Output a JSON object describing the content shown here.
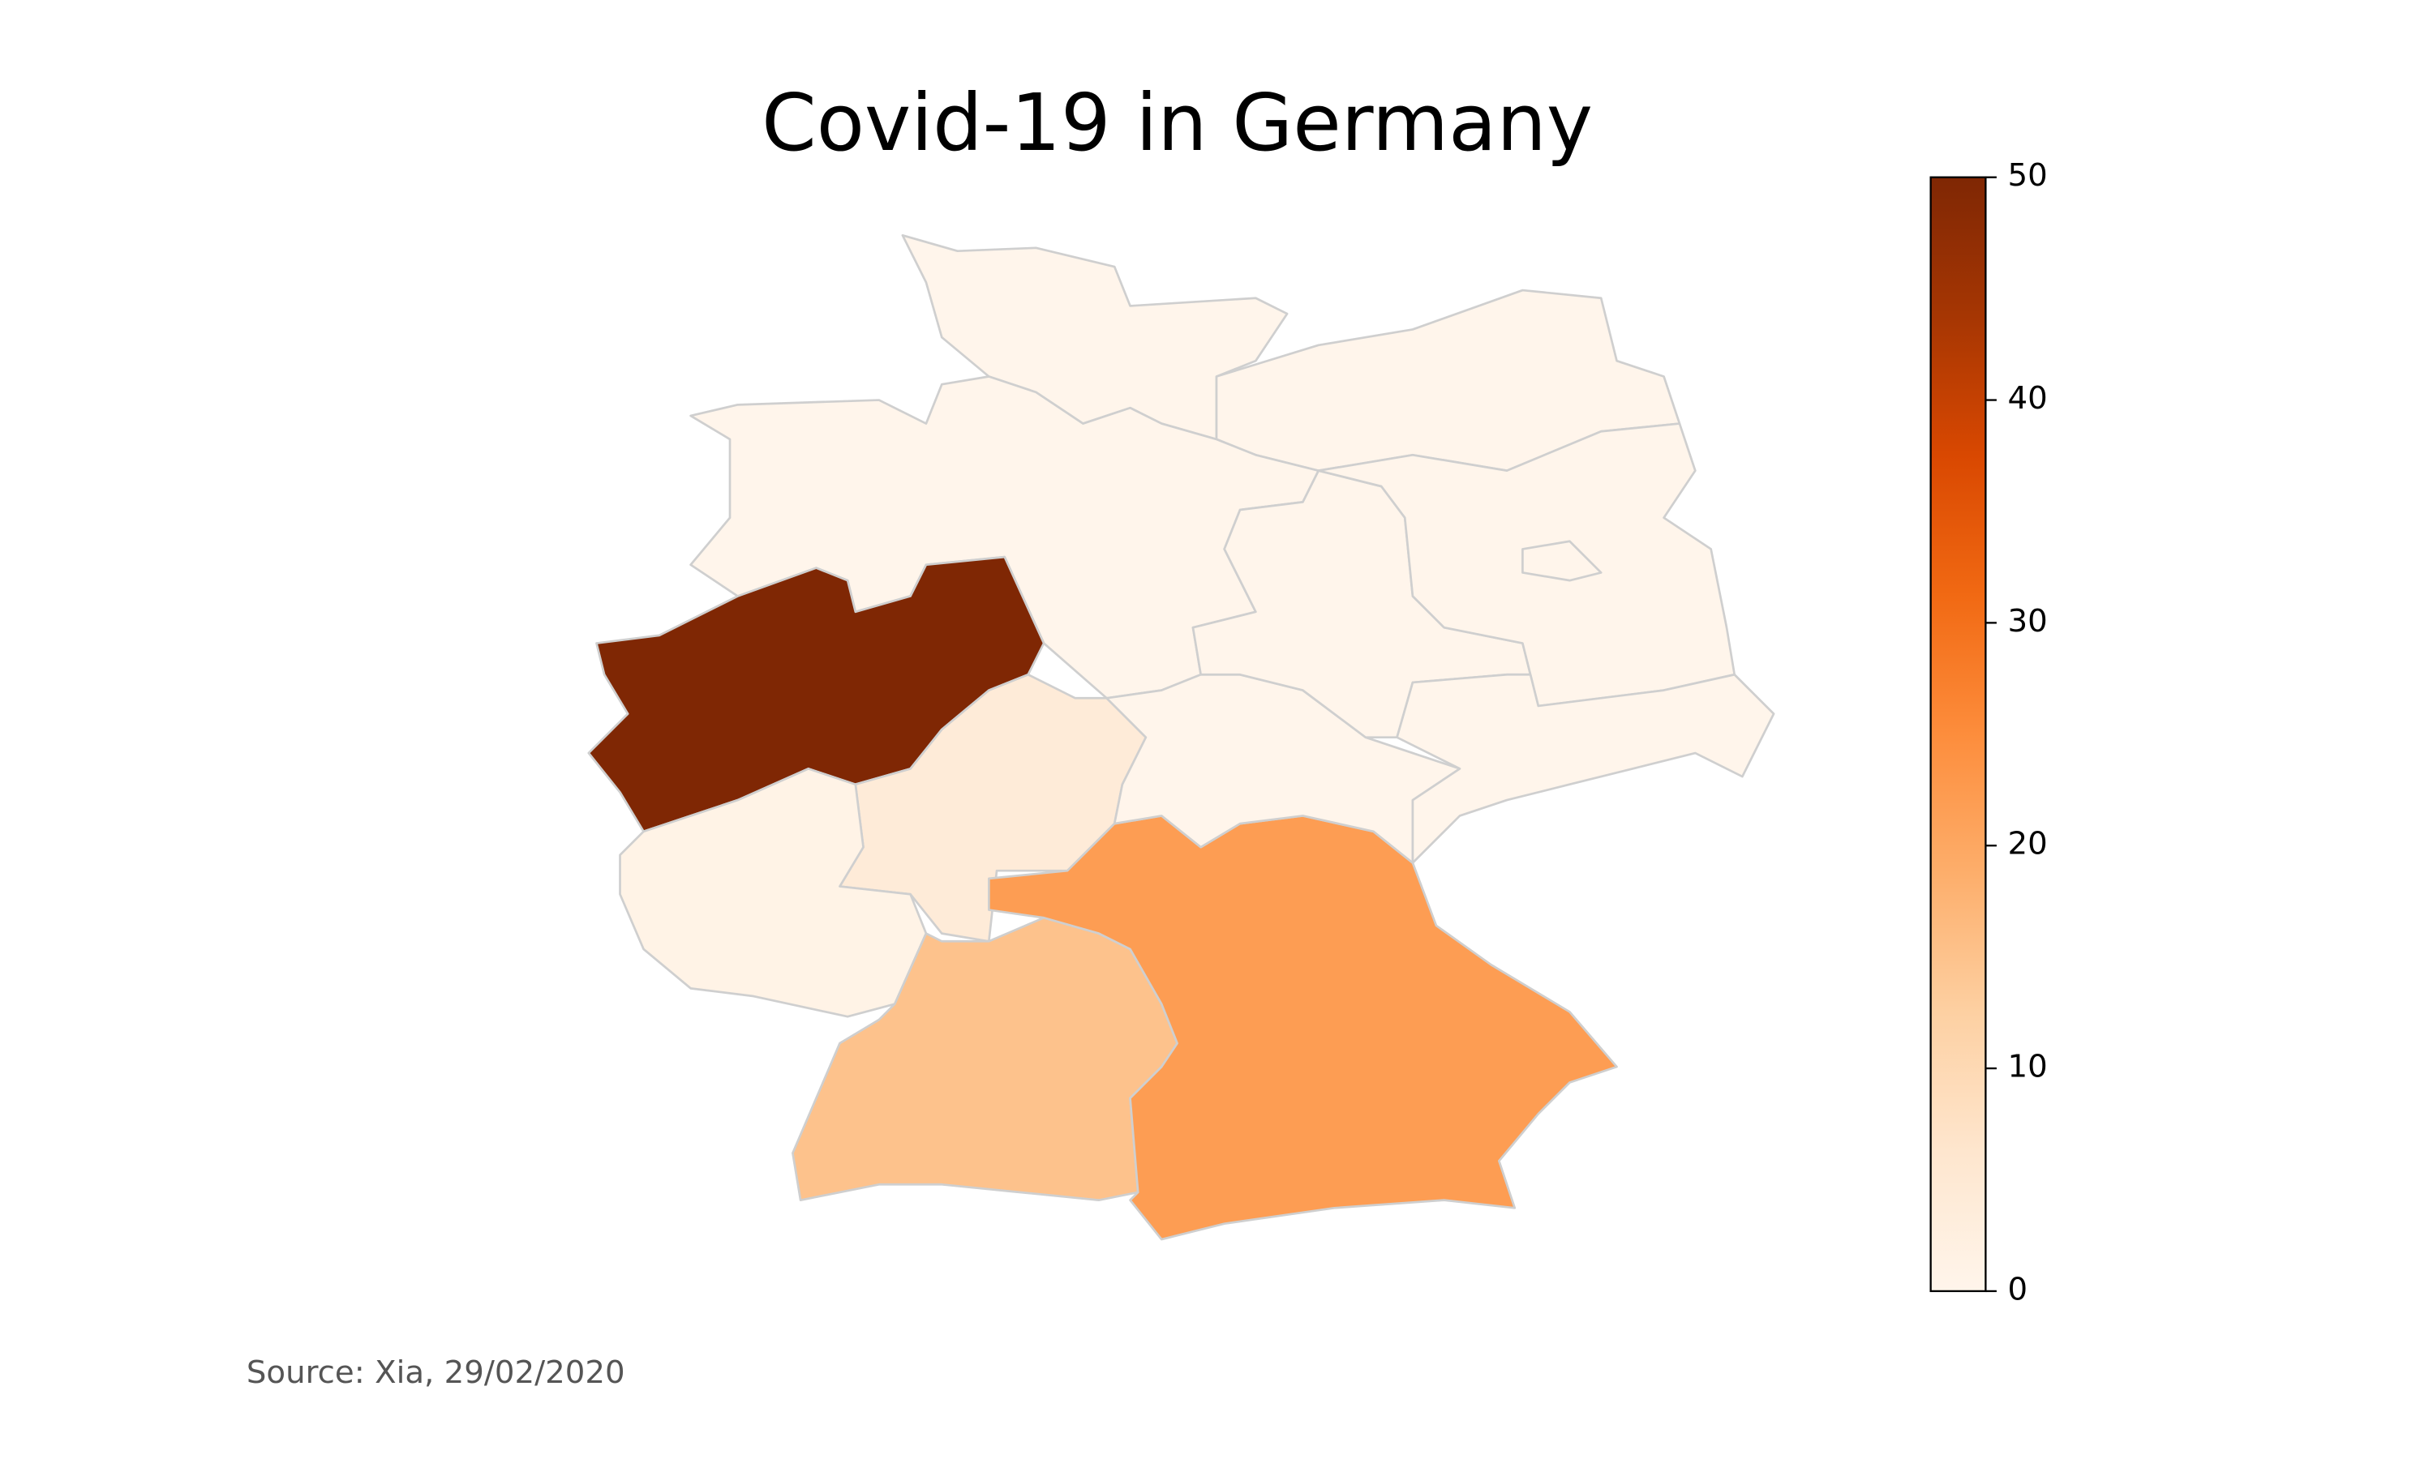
{
  "chart_data": {
    "type": "choropleth",
    "title": "Covid-19 in Germany",
    "annotation": "Source: Xia, 29/02/2020",
    "values": [
      0,
      0,
      0,
      50,
      4,
      1,
      15,
      22,
      0,
      0,
      0,
      0,
      0
    ],
    "colormap": "Oranges",
    "clim": [
      0,
      50
    ],
    "cticks": [
      0,
      10,
      20,
      30,
      40,
      50
    ]
  }
}
